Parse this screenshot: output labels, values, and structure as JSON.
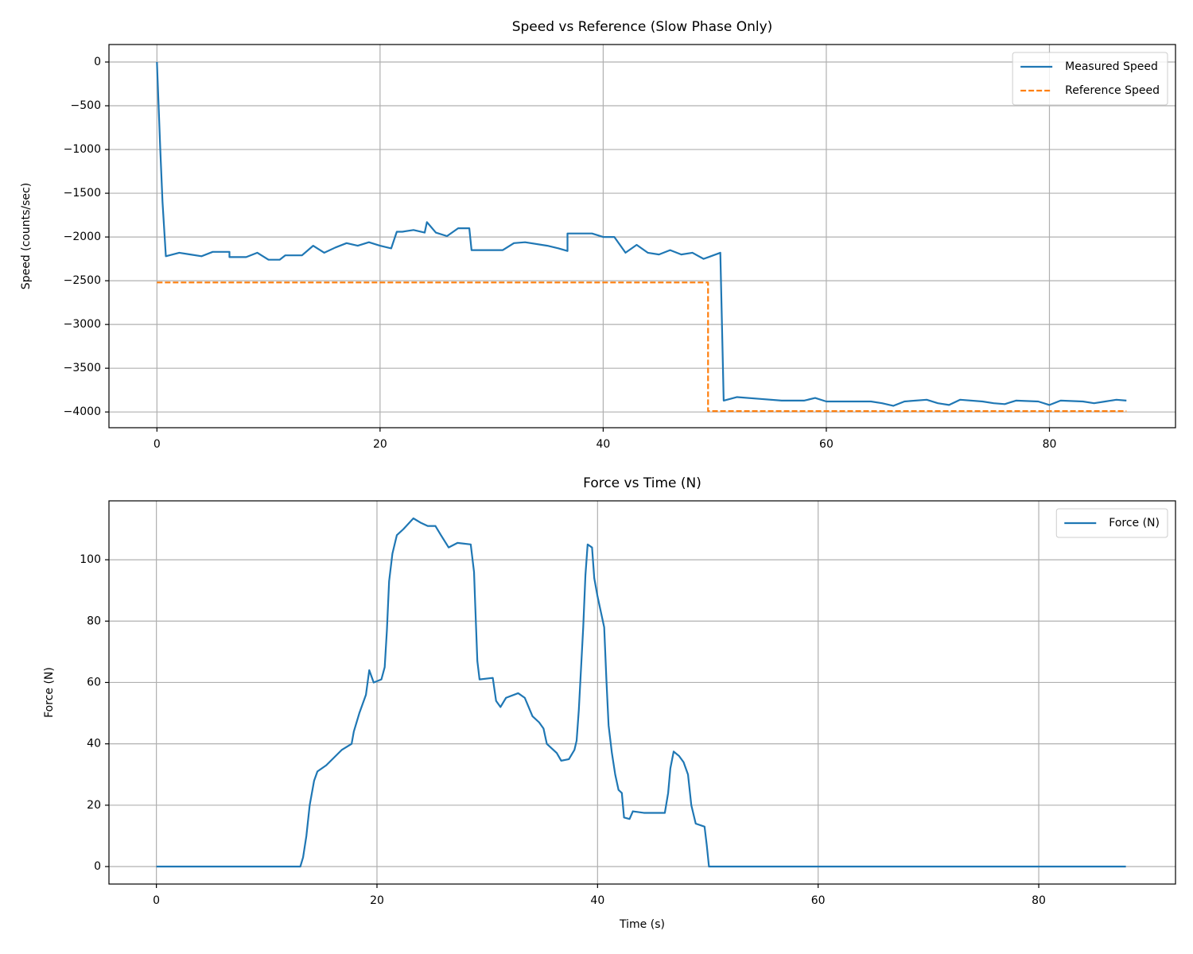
{
  "chart_data": [
    {
      "type": "line",
      "title": "Speed vs Reference (Slow Phase Only)",
      "ylabel": "Speed (counts/sec)",
      "xlim": [
        -4.3,
        91.3
      ],
      "ylim": [
        -4180,
        200
      ],
      "xticks": [
        0,
        20,
        40,
        60,
        80
      ],
      "yticks": [
        0,
        {
          "value": -500,
          "label": "−500"
        },
        {
          "value": -1000,
          "label": "−1000"
        },
        {
          "value": -1500,
          "label": "−1500"
        },
        {
          "value": -2000,
          "label": "−2000"
        },
        {
          "value": -2500,
          "label": "−2500"
        },
        {
          "value": -3000,
          "label": "−3000"
        },
        {
          "value": -3500,
          "label": "−3500"
        },
        {
          "value": -4000,
          "label": "−4000"
        }
      ],
      "grid": true,
      "legend": "upper right",
      "series": [
        {
          "name": "Measured Speed",
          "color": "#1f77b4",
          "linestyle": "solid",
          "x": [
            0,
            0.3,
            0.5,
            0.8,
            2,
            3,
            4,
            5,
            6.5,
            6.5,
            8,
            9,
            10,
            11,
            11.5,
            13,
            14,
            15,
            16,
            17,
            18,
            19,
            20,
            21,
            21.5,
            22,
            23,
            24,
            24.2,
            25,
            26,
            27,
            28,
            28.2,
            30,
            31,
            32,
            33,
            35,
            36,
            36.8,
            36.8,
            39,
            40,
            41,
            42,
            43,
            44,
            45,
            46,
            47,
            48,
            49,
            50.5,
            50.7,
            50.8,
            52,
            54,
            56,
            58,
            59,
            60,
            62,
            64,
            65,
            66,
            67,
            69,
            70,
            71,
            72,
            74,
            75,
            76,
            77,
            79,
            80,
            81,
            83,
            84,
            85,
            86,
            86.9
          ],
          "values": [
            0,
            -1000,
            -1600,
            -2220,
            -2180,
            -2200,
            -2220,
            -2170,
            -2170,
            -2230,
            -2230,
            -2180,
            -2260,
            -2260,
            -2210,
            -2210,
            -2100,
            -2180,
            -2120,
            -2070,
            -2100,
            -2060,
            -2100,
            -2130,
            -1940,
            -1940,
            -1920,
            -1950,
            -1830,
            -1950,
            -1990,
            -1900,
            -1900,
            -2150,
            -2150,
            -2150,
            -2070,
            -2060,
            -2100,
            -2130,
            -2160,
            -1960,
            -1960,
            -2000,
            -2000,
            -2180,
            -2090,
            -2180,
            -2200,
            -2150,
            -2200,
            -2180,
            -2250,
            -2180,
            -3300,
            -3870,
            -3830,
            -3850,
            -3870,
            -3870,
            -3840,
            -3880,
            -3880,
            -3880,
            -3900,
            -3930,
            -3880,
            -3860,
            -3900,
            -3920,
            -3860,
            -3880,
            -3900,
            -3910,
            -3870,
            -3880,
            -3920,
            -3870,
            -3880,
            -3900,
            -3880,
            -3860,
            -3870
          ]
        },
        {
          "name": "Reference Speed",
          "color": "#ff7f0e",
          "linestyle": "dashed",
          "x": [
            0,
            49.4,
            49.4,
            86.9
          ],
          "values": [
            -2520,
            -2520,
            -3990,
            -3990
          ]
        }
      ]
    },
    {
      "type": "line",
      "title": "Force vs Time (N)",
      "xlabel": "Time (s)",
      "ylabel": "Force (N)",
      "xlim": [
        -4.3,
        92.4
      ],
      "ylim": [
        -5.7,
        119.2
      ],
      "xticks": [
        0,
        20,
        40,
        60,
        80
      ],
      "yticks": [
        0,
        20,
        40,
        60,
        80,
        100
      ],
      "grid": true,
      "legend": "upper right",
      "series": [
        {
          "name": "Force (N)",
          "color": "#1f77b4",
          "linestyle": "solid",
          "x": [
            0,
            13.05,
            13.3,
            13.6,
            13.9,
            14.3,
            14.6,
            15.4,
            16.1,
            16.8,
            17.7,
            17.9,
            18.4,
            19.0,
            19.3,
            19.7,
            20.4,
            20.7,
            20.9,
            21.1,
            21.4,
            21.8,
            22.4,
            23.3,
            24.0,
            24.6,
            25.3,
            25.8,
            26.5,
            27.3,
            28.5,
            28.8,
            28.9,
            29.1,
            29.3,
            30.5,
            30.8,
            31.2,
            31.7,
            32.8,
            33.4,
            34.1,
            34.7,
            35.1,
            35.4,
            36.3,
            36.7,
            37.4,
            37.9,
            38.1,
            38.3,
            38.7,
            38.9,
            39.1,
            39.5,
            39.7,
            40.0,
            40.3,
            40.6,
            40.8,
            41.0,
            41.3,
            41.6,
            41.9,
            42.2,
            42.4,
            42.9,
            43.2,
            44.2,
            46.1,
            46.4,
            46.6,
            46.9,
            47.4,
            47.8,
            48.2,
            48.5,
            48.9,
            49.7,
            49.9,
            50.1,
            87.9
          ],
          "values": [
            0,
            0,
            3,
            10,
            20,
            28,
            31,
            33,
            35.5,
            38,
            40,
            44,
            50,
            56,
            64,
            60,
            61,
            65,
            77,
            93,
            102,
            108,
            110,
            113.5,
            112,
            111,
            111,
            108,
            104,
            105.5,
            105,
            96,
            86,
            67,
            61,
            61.5,
            54,
            52,
            55,
            56.5,
            55,
            49,
            47,
            45,
            40,
            37,
            34.5,
            35,
            38,
            41,
            51,
            78,
            95,
            105,
            104,
            94,
            88,
            83,
            78,
            61,
            46,
            37,
            30,
            25,
            24,
            16,
            15.5,
            18,
            17.5,
            17.5,
            24,
            32,
            37.5,
            36,
            34,
            30,
            20,
            14,
            13,
            7,
            0,
            0
          ]
        }
      ]
    }
  ]
}
